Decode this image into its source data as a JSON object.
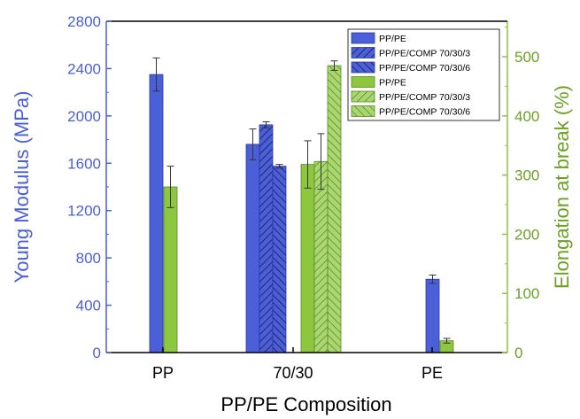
{
  "chart_data": {
    "type": "bar",
    "categories": [
      "PP",
      "70/30",
      "PE"
    ],
    "xlabel": "PP/PE Composition",
    "ylabel_left": "Young Modulus (MPa)",
    "ylabel_right": "Elongation at break (%)",
    "ylim_left": [
      0,
      2800
    ],
    "ylim_right": [
      0,
      560
    ],
    "yticks_left": [
      0,
      400,
      800,
      1200,
      1600,
      2000,
      2400,
      2800
    ],
    "yticks_right": [
      0,
      100,
      200,
      300,
      400,
      500
    ],
    "grid": false,
    "legend_position": "top-right",
    "colors": {
      "modulus": "#4a5fd8",
      "elongation": "#8dc63f",
      "left_axis": "#4a5fd8",
      "right_axis": "#6aa121"
    },
    "series": [
      {
        "name": "PP/PE",
        "axis": "left",
        "pattern": "solid",
        "values": [
          2350,
          1760,
          620
        ],
        "errors": [
          140,
          130,
          35
        ]
      },
      {
        "name": "PP/PE/COMP 70/30/3",
        "axis": "left",
        "pattern": "hatch-forward",
        "values": [
          null,
          1925,
          null
        ],
        "errors": [
          null,
          25,
          null
        ]
      },
      {
        "name": "PP/PE/COMP 70/30/6",
        "axis": "left",
        "pattern": "hatch-back",
        "values": [
          null,
          1575,
          null
        ],
        "errors": [
          null,
          15,
          null
        ]
      },
      {
        "name": "PP/PE",
        "axis": "right",
        "pattern": "solid",
        "values": [
          280,
          318,
          20
        ],
        "errors": [
          35,
          40,
          4
        ]
      },
      {
        "name": "PP/PE/COMP 70/30/3",
        "axis": "right",
        "pattern": "hatch-forward",
        "values": [
          null,
          323,
          null
        ],
        "errors": [
          null,
          47,
          null
        ]
      },
      {
        "name": "PP/PE/COMP 70/30/6",
        "axis": "right",
        "pattern": "hatch-back",
        "values": [
          null,
          485,
          null
        ],
        "errors": [
          null,
          8,
          null
        ]
      }
    ]
  }
}
